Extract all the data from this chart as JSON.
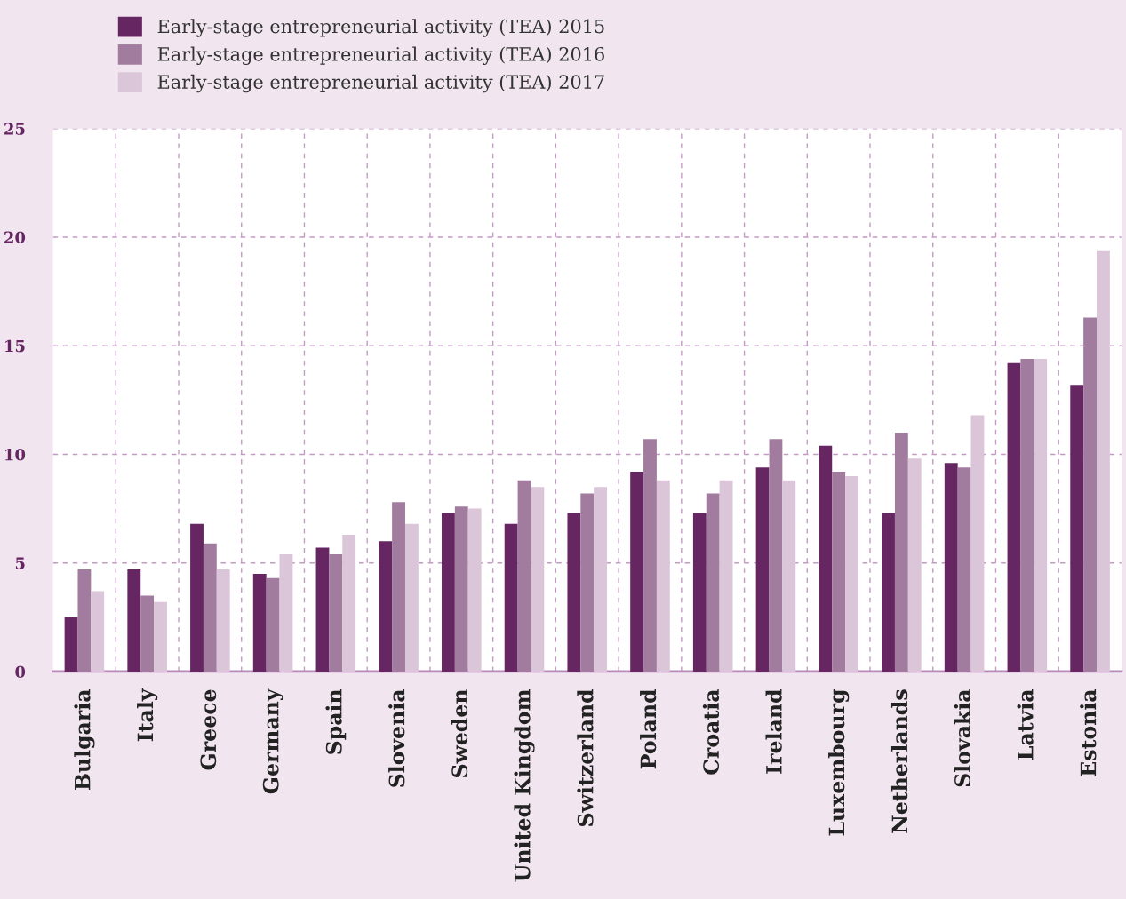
{
  "chart_data": {
    "type": "bar",
    "categories": [
      "Bulgaria",
      "Italy",
      "Greece",
      "Germany",
      "Spain",
      "Slovenia",
      "Sweden",
      "United Kingdom",
      "Switzerland",
      "Poland",
      "Croatia",
      "Ireland",
      "Luxembourg",
      "Netherlands",
      "Slovakia",
      "Latvia",
      "Estonia"
    ],
    "series": [
      {
        "name": "Early-stage entrepreneurial activity (TEA) 2015",
        "color": "#652662",
        "values": [
          2.5,
          4.7,
          6.8,
          4.5,
          5.7,
          6.0,
          7.3,
          6.8,
          7.3,
          9.2,
          7.3,
          9.4,
          10.4,
          7.3,
          9.6,
          14.2,
          13.2
        ]
      },
      {
        "name": "Early-stage entrepreneurial activity (TEA) 2016",
        "color": "#a27c9f",
        "values": [
          4.7,
          3.5,
          5.9,
          4.3,
          5.4,
          7.8,
          7.6,
          8.8,
          8.2,
          10.7,
          8.2,
          10.7,
          9.2,
          11.0,
          9.4,
          14.4,
          16.3
        ]
      },
      {
        "name": "Early-stage entrepreneurial activity (TEA) 2017",
        "color": "#dbc5d8",
        "values": [
          3.7,
          3.2,
          4.7,
          5.4,
          6.3,
          6.8,
          7.5,
          8.5,
          8.5,
          8.8,
          8.8,
          8.8,
          9.0,
          9.8,
          11.8,
          14.4,
          19.4
        ]
      }
    ],
    "ylim": [
      0,
      25
    ],
    "yticks": [
      0,
      5,
      10,
      15,
      20,
      25
    ],
    "grid": true,
    "legend": "top left"
  }
}
